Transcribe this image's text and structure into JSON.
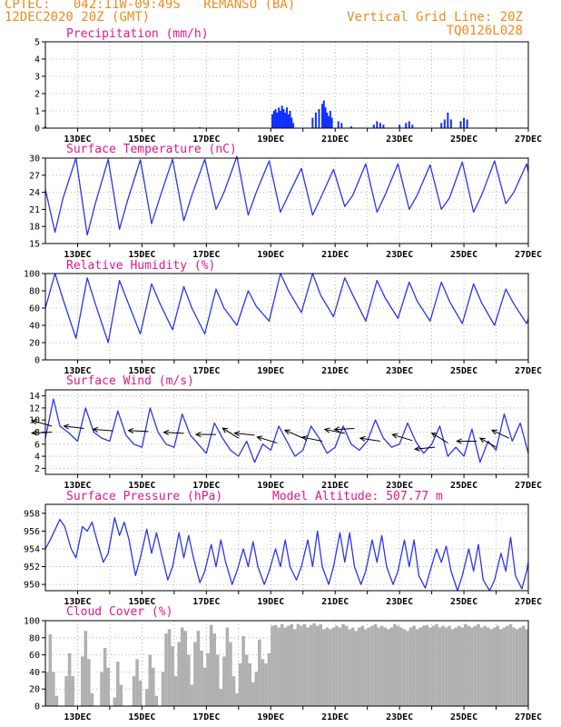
{
  "header": {
    "line1_left": "CPTEC:   042:11W-09:49S   REMANSO (BA)",
    "line2_left": "12DEC2020 20Z (GMT)",
    "line2_right": "Vertical Grid Line: 20Z",
    "line3_right": "TQ0126L028"
  },
  "colors": {
    "header": "#f08a1e",
    "title": "#e0188c",
    "line": "#2a36e8",
    "bar": "#1030ff",
    "cloud": "#b0b0b0"
  },
  "chart_data": [
    {
      "type": "bar",
      "title": "Precipitation (mm/h)",
      "ylim": [
        0,
        5
      ],
      "yticks": [
        0,
        1,
        2,
        3,
        4,
        5
      ],
      "x_ticks": [
        "13DEC",
        "15DEC",
        "17DEC",
        "19DEC",
        "21DEC",
        "23DEC",
        "25DEC",
        "27DEC"
      ],
      "x_range_days": [
        12.0,
        27.0
      ],
      "x": [
        12.0,
        16.8,
        19.05,
        19.1,
        19.15,
        19.2,
        19.25,
        19.3,
        19.35,
        19.4,
        19.45,
        19.5,
        19.55,
        19.6,
        19.65,
        19.7,
        20.3,
        20.4,
        20.5,
        20.6,
        20.65,
        20.7,
        20.75,
        20.8,
        20.85,
        20.9,
        21.1,
        21.2,
        21.5,
        22.2,
        22.3,
        22.4,
        22.5,
        23.0,
        23.2,
        23.3,
        23.4,
        24.3,
        24.4,
        24.5,
        24.6,
        24.9,
        25.0,
        25.1
      ],
      "values": [
        0.1,
        0.05,
        0.8,
        1.0,
        1.1,
        0.9,
        1.2,
        1.0,
        1.3,
        1.1,
        0.9,
        1.2,
        0.8,
        1.0,
        0.6,
        0.3,
        0.6,
        0.9,
        1.1,
        1.4,
        1.6,
        1.2,
        0.9,
        0.7,
        1.0,
        0.6,
        0.4,
        0.3,
        0.1,
        0.2,
        0.4,
        0.3,
        0.2,
        0.2,
        0.3,
        0.4,
        0.2,
        0.3,
        0.5,
        0.9,
        0.5,
        0.4,
        0.6,
        0.5
      ]
    },
    {
      "type": "line",
      "title": "Surface Temperature (nC)",
      "ylim": [
        15,
        30
      ],
      "yticks": [
        15,
        18,
        21,
        24,
        27,
        30
      ],
      "x_ticks": [
        "13DEC",
        "15DEC",
        "17DEC",
        "19DEC",
        "21DEC",
        "23DEC",
        "25DEC",
        "27DEC"
      ],
      "x_range_days": [
        12.0,
        27.0
      ],
      "x": [
        12.0,
        12.3,
        12.55,
        12.95,
        13.3,
        13.55,
        13.95,
        14.3,
        14.55,
        14.95,
        15.3,
        15.55,
        15.95,
        16.3,
        16.55,
        16.95,
        17.3,
        17.55,
        17.95,
        18.3,
        18.55,
        18.95,
        19.3,
        19.55,
        19.95,
        20.3,
        20.55,
        20.95,
        21.3,
        21.55,
        21.95,
        22.3,
        22.55,
        22.95,
        23.3,
        23.55,
        23.95,
        24.3,
        24.55,
        24.95,
        25.3,
        25.55,
        25.95,
        26.3,
        26.55,
        26.95,
        27.0
      ],
      "values": [
        24.5,
        17.0,
        23.0,
        30.0,
        16.5,
        22.0,
        29.8,
        17.5,
        22.5,
        29.7,
        18.5,
        23.0,
        29.8,
        19.0,
        23.5,
        29.8,
        21.0,
        24.0,
        30.3,
        20.0,
        24.0,
        29.5,
        20.5,
        23.5,
        28.2,
        20.0,
        23.0,
        28.0,
        21.5,
        23.5,
        29.0,
        20.5,
        23.5,
        29.0,
        21.0,
        23.5,
        28.8,
        21.0,
        23.0,
        29.3,
        20.5,
        23.5,
        29.5,
        22.0,
        24.0,
        29.0,
        27.5
      ]
    },
    {
      "type": "line",
      "title": "Relative Humidity (%)",
      "ylim": [
        0,
        100
      ],
      "yticks": [
        0,
        20,
        40,
        60,
        80,
        100
      ],
      "x_ticks": [
        "13DEC",
        "15DEC",
        "17DEC",
        "19DEC",
        "21DEC",
        "23DEC",
        "25DEC",
        "27DEC"
      ],
      "x_range_days": [
        12.0,
        27.0
      ],
      "x": [
        12.0,
        12.3,
        12.55,
        12.95,
        13.3,
        13.55,
        13.95,
        14.3,
        14.55,
        14.95,
        15.3,
        15.55,
        15.95,
        16.3,
        16.55,
        16.95,
        17.3,
        17.55,
        17.95,
        18.3,
        18.55,
        18.95,
        19.3,
        19.55,
        19.95,
        20.3,
        20.55,
        20.95,
        21.3,
        21.55,
        21.95,
        22.3,
        22.55,
        22.95,
        23.3,
        23.55,
        23.95,
        24.3,
        24.55,
        24.95,
        25.3,
        25.55,
        25.95,
        26.3,
        26.55,
        26.95,
        27.0
      ],
      "values": [
        60,
        100,
        70,
        25,
        95,
        65,
        20,
        92,
        68,
        30,
        88,
        66,
        35,
        85,
        60,
        30,
        82,
        60,
        40,
        80,
        62,
        45,
        100,
        80,
        55,
        100,
        75,
        50,
        95,
        75,
        45,
        92,
        72,
        48,
        90,
        68,
        45,
        90,
        68,
        42,
        88,
        66,
        40,
        82,
        65,
        42,
        48
      ]
    },
    {
      "type": "line",
      "title": "Surface Wind (m/s)",
      "ylim": [
        1,
        15
      ],
      "yticks": [
        2,
        4,
        6,
        8,
        10,
        12,
        14
      ],
      "x_ticks": [
        "13DEC",
        "15DEC",
        "17DEC",
        "19DEC",
        "21DEC",
        "23DEC",
        "25DEC",
        "27DEC"
      ],
      "x_range_days": [
        12.0,
        27.0
      ],
      "x": [
        12.0,
        12.25,
        12.45,
        12.7,
        13.0,
        13.25,
        13.5,
        13.75,
        14.0,
        14.25,
        14.5,
        14.75,
        15.0,
        15.25,
        15.5,
        15.75,
        16.0,
        16.25,
        16.5,
        16.75,
        17.0,
        17.25,
        17.5,
        17.75,
        18.0,
        18.25,
        18.5,
        18.75,
        19.0,
        19.25,
        19.5,
        19.75,
        20.0,
        20.25,
        20.5,
        20.75,
        21.0,
        21.25,
        21.5,
        21.75,
        22.0,
        22.25,
        22.5,
        22.75,
        23.0,
        23.25,
        23.5,
        23.75,
        24.0,
        24.25,
        24.5,
        24.75,
        25.0,
        25.25,
        25.5,
        25.75,
        26.0,
        26.25,
        26.5,
        26.75,
        27.0
      ],
      "values": [
        7.0,
        13.5,
        9.0,
        8.0,
        6.5,
        12.0,
        8.0,
        7.0,
        6.5,
        11.5,
        7.5,
        6.0,
        5.5,
        12.0,
        8.0,
        6.0,
        5.5,
        11.0,
        7.5,
        6.0,
        4.5,
        9.5,
        7.0,
        5.0,
        4.0,
        6.5,
        3.0,
        6.0,
        5.0,
        9.0,
        6.5,
        4.0,
        5.0,
        9.0,
        7.0,
        4.5,
        5.5,
        9.0,
        6.0,
        5.0,
        6.5,
        10.0,
        7.0,
        5.5,
        6.0,
        9.5,
        6.5,
        4.5,
        6.0,
        9.0,
        4.0,
        5.5,
        4.0,
        8.5,
        3.0,
        6.5,
        5.0,
        11.0,
        6.5,
        9.5,
        4.5
      ],
      "arrows": [
        {
          "x": 12.2,
          "speed": 9.0,
          "dx": -1.0,
          "dy": -0.28
        },
        {
          "x": 12.2,
          "speed": 8.0,
          "dx": -1.0,
          "dy": 0.05
        },
        {
          "x": 13.2,
          "speed": 8.6,
          "dx": -1.0,
          "dy": -0.12
        },
        {
          "x": 14.1,
          "speed": 8.2,
          "dx": -1.0,
          "dy": -0.08
        },
        {
          "x": 15.2,
          "speed": 8.1,
          "dx": -1.0,
          "dy": -0.05
        },
        {
          "x": 16.3,
          "speed": 7.8,
          "dx": -1.0,
          "dy": -0.05
        },
        {
          "x": 17.3,
          "speed": 7.6,
          "dx": -1.0,
          "dy": 0.0
        },
        {
          "x": 18.0,
          "speed": 7.0,
          "dx": -0.8,
          "dy": -0.5
        },
        {
          "x": 18.5,
          "speed": 7.5,
          "dx": -1.0,
          "dy": -0.1
        },
        {
          "x": 19.2,
          "speed": 6.2,
          "dx": -1.0,
          "dy": -0.3
        },
        {
          "x": 20.0,
          "speed": 7.0,
          "dx": -0.9,
          "dy": -0.4
        },
        {
          "x": 20.6,
          "speed": 6.5,
          "dx": -1.0,
          "dy": -0.2
        },
        {
          "x": 21.3,
          "speed": 7.8,
          "dx": -1.0,
          "dy": -0.2
        },
        {
          "x": 21.6,
          "speed": 8.6,
          "dx": -1.0,
          "dy": 0.05
        },
        {
          "x": 22.4,
          "speed": 6.5,
          "dx": -1.0,
          "dy": -0.15
        },
        {
          "x": 23.4,
          "speed": 6.6,
          "dx": -1.0,
          "dy": -0.3
        },
        {
          "x": 24.1,
          "speed": 5.5,
          "dx": -1.0,
          "dy": 0.1
        },
        {
          "x": 24.5,
          "speed": 6.2,
          "dx": -0.8,
          "dy": -0.5
        },
        {
          "x": 25.4,
          "speed": 6.5,
          "dx": -1.0,
          "dy": 0.0
        },
        {
          "x": 26.0,
          "speed": 5.5,
          "dx": -0.8,
          "dy": -0.45
        },
        {
          "x": 26.4,
          "speed": 7.0,
          "dx": -0.85,
          "dy": -0.4
        }
      ]
    },
    {
      "type": "line",
      "title": "Surface Pressure (hPa)",
      "annotation": "Model Altitude: 507.77 m",
      "ylim": [
        949.3,
        959.0
      ],
      "yticks": [
        950,
        952,
        954,
        956,
        958
      ],
      "x_ticks": [
        "13DEC",
        "15DEC",
        "17DEC",
        "19DEC",
        "21DEC",
        "23DEC",
        "25DEC",
        "27DEC"
      ],
      "x_range_days": [
        12.0,
        27.0
      ],
      "x": [
        12.0,
        12.15,
        12.45,
        12.6,
        12.8,
        12.95,
        13.15,
        13.3,
        13.45,
        13.6,
        13.8,
        13.95,
        14.15,
        14.3,
        14.45,
        14.6,
        14.8,
        14.95,
        15.15,
        15.3,
        15.45,
        15.6,
        15.8,
        15.95,
        16.15,
        16.3,
        16.45,
        16.6,
        16.8,
        16.95,
        17.15,
        17.3,
        17.45,
        17.6,
        17.8,
        17.95,
        18.15,
        18.3,
        18.45,
        18.6,
        18.8,
        18.95,
        19.15,
        19.3,
        19.45,
        19.6,
        19.8,
        19.95,
        20.15,
        20.3,
        20.45,
        20.6,
        20.8,
        20.95,
        21.15,
        21.3,
        21.45,
        21.6,
        21.8,
        21.95,
        22.15,
        22.3,
        22.45,
        22.6,
        22.8,
        22.95,
        23.15,
        23.3,
        23.45,
        23.6,
        23.8,
        23.95,
        24.15,
        24.3,
        24.45,
        24.6,
        24.8,
        24.95,
        25.15,
        25.3,
        25.45,
        25.6,
        25.8,
        25.95,
        26.15,
        26.3,
        26.45,
        26.6,
        26.8,
        26.95,
        27.0
      ],
      "values": [
        954.0,
        955.0,
        957.3,
        956.5,
        954.0,
        953.0,
        956.5,
        956.0,
        957.0,
        955.0,
        952.5,
        953.5,
        957.5,
        955.5,
        957.0,
        955.0,
        951.0,
        953.0,
        956.2,
        953.5,
        955.8,
        953.5,
        950.5,
        952.0,
        955.8,
        953.0,
        955.5,
        953.0,
        950.2,
        951.5,
        954.5,
        952.0,
        955.0,
        952.5,
        950.0,
        951.5,
        954.0,
        952.0,
        954.8,
        952.0,
        950.0,
        951.5,
        954.0,
        952.0,
        955.0,
        952.0,
        950.5,
        952.0,
        955.0,
        952.0,
        956.0,
        952.0,
        950.0,
        952.0,
        955.8,
        952.5,
        955.8,
        952.0,
        950.0,
        951.5,
        955.0,
        952.5,
        955.5,
        952.0,
        950.0,
        951.5,
        955.0,
        952.0,
        955.0,
        951.0,
        949.6,
        951.5,
        954.0,
        952.5,
        954.3,
        951.5,
        949.3,
        951.0,
        954.0,
        951.5,
        954.5,
        950.5,
        949.3,
        950.5,
        953.5,
        951.5,
        955.3,
        951.0,
        949.5,
        951.5,
        952.5
      ]
    },
    {
      "type": "area",
      "title": "Cloud Cover (%)",
      "ylim": [
        0,
        100
      ],
      "yticks": [
        0,
        20,
        40,
        60,
        80,
        100
      ],
      "x_ticks": [
        "13DEC",
        "15DEC",
        "17DEC",
        "19DEC",
        "21DEC",
        "23DEC",
        "25DEC",
        "27DEC"
      ],
      "x_range_days": [
        12.0,
        27.0
      ],
      "x": [
        12.0,
        12.1,
        12.2,
        12.3,
        12.4,
        12.5,
        12.6,
        12.7,
        12.8,
        12.9,
        13.0,
        13.1,
        13.2,
        13.3,
        13.4,
        13.5,
        13.6,
        13.7,
        13.8,
        13.9,
        14.0,
        14.1,
        14.2,
        14.3,
        14.4,
        14.5,
        14.6,
        14.7,
        14.8,
        14.9,
        15.0,
        15.1,
        15.2,
        15.3,
        15.4,
        15.5,
        15.6,
        15.7,
        15.8,
        15.9,
        16.0,
        16.1,
        16.2,
        16.3,
        16.4,
        16.5,
        16.6,
        16.7,
        16.8,
        16.9,
        17.0,
        17.1,
        17.2,
        17.3,
        17.4,
        17.5,
        17.6,
        17.7,
        17.8,
        17.9,
        18.0,
        18.1,
        18.2,
        18.3,
        18.4,
        18.5,
        18.6,
        18.7,
        18.8,
        18.9,
        19.0,
        19.1,
        19.2,
        19.3,
        19.4,
        19.5,
        19.6,
        19.7,
        19.8,
        19.9,
        20.0,
        20.1,
        20.2,
        20.3,
        20.4,
        20.5,
        20.6,
        20.7,
        20.8,
        20.9,
        21.0,
        21.1,
        21.2,
        21.3,
        21.4,
        21.5,
        21.6,
        21.7,
        21.8,
        21.9,
        22.0,
        22.1,
        22.2,
        22.3,
        22.4,
        22.5,
        22.6,
        22.7,
        22.8,
        22.9,
        23.0,
        23.1,
        23.2,
        23.3,
        23.4,
        23.5,
        23.6,
        23.7,
        23.8,
        23.9,
        24.0,
        24.1,
        24.2,
        24.3,
        24.4,
        24.5,
        24.6,
        24.7,
        24.8,
        24.9,
        25.0,
        25.1,
        25.2,
        25.3,
        25.4,
        25.5,
        25.6,
        25.7,
        25.8,
        25.9,
        26.0,
        26.1,
        26.2,
        26.3,
        26.4,
        26.5,
        26.6,
        26.7,
        26.8,
        26.9
      ],
      "values": [
        40,
        84,
        40,
        12,
        0,
        0,
        35,
        62,
        35,
        0,
        0,
        58,
        88,
        55,
        15,
        0,
        0,
        40,
        68,
        45,
        0,
        10,
        52,
        25,
        0,
        0,
        0,
        35,
        55,
        30,
        0,
        20,
        60,
        45,
        12,
        0,
        40,
        85,
        90,
        70,
        35,
        75,
        92,
        88,
        60,
        25,
        75,
        88,
        65,
        45,
        62,
        95,
        85,
        60,
        20,
        58,
        92,
        75,
        35,
        15,
        50,
        82,
        60,
        50,
        28,
        40,
        78,
        55,
        50,
        62,
        94,
        95,
        92,
        96,
        92,
        94,
        96,
        90,
        96,
        94,
        96,
        92,
        95,
        97,
        94,
        96,
        90,
        92,
        90,
        92,
        94,
        92,
        96,
        94,
        90,
        92,
        88,
        92,
        94,
        90,
        92,
        94,
        96,
        92,
        94,
        92,
        90,
        92,
        96,
        94,
        92,
        90,
        88,
        92,
        94,
        90,
        92,
        94,
        95,
        92,
        94,
        96,
        92,
        94,
        92,
        94,
        90,
        92,
        94,
        92,
        96,
        94,
        92,
        94,
        96,
        92,
        94,
        92,
        90,
        92,
        94,
        90,
        92,
        94,
        96,
        92,
        90,
        92,
        94,
        90
      ]
    }
  ]
}
